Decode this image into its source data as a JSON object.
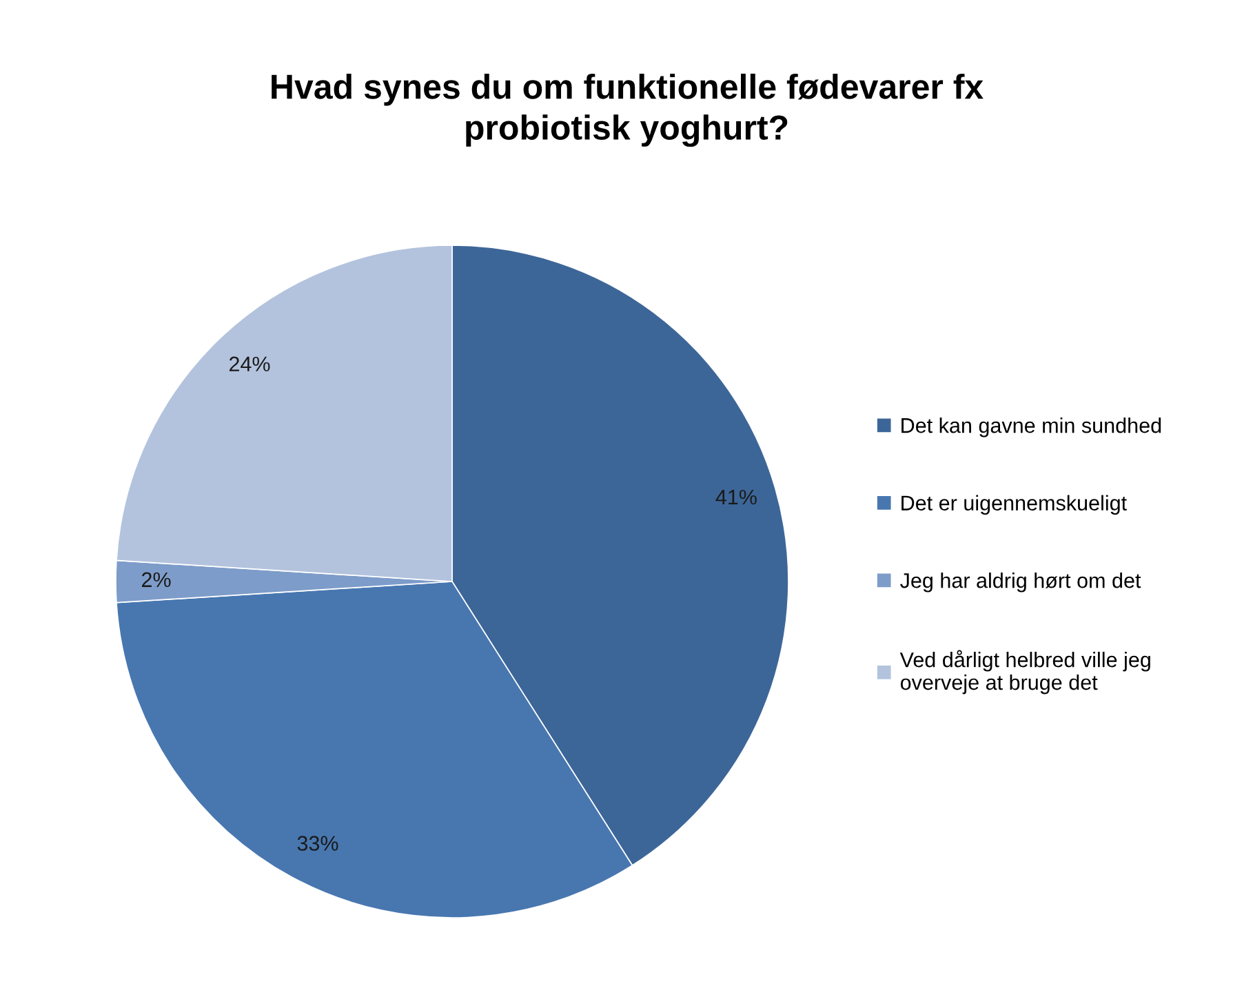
{
  "chart_data": {
    "type": "pie",
    "title": "Hvad synes du om funktionelle fødevarer fx\nprobiotisk yoghurt?",
    "categories": [
      "Det kan gavne min sundhed",
      "Det er uigennemskueligt",
      "Jeg har aldrig hørt om det",
      "Ved dårligt helbred ville jeg\noverveje at bruge det"
    ],
    "values": [
      41,
      33,
      2,
      24
    ],
    "colors": [
      "#3d6698",
      "#4877b0",
      "#7d9cc9",
      "#b3c3dd"
    ],
    "value_labels": [
      "41%",
      "33%",
      "2%",
      "24%"
    ],
    "legend": "right"
  }
}
